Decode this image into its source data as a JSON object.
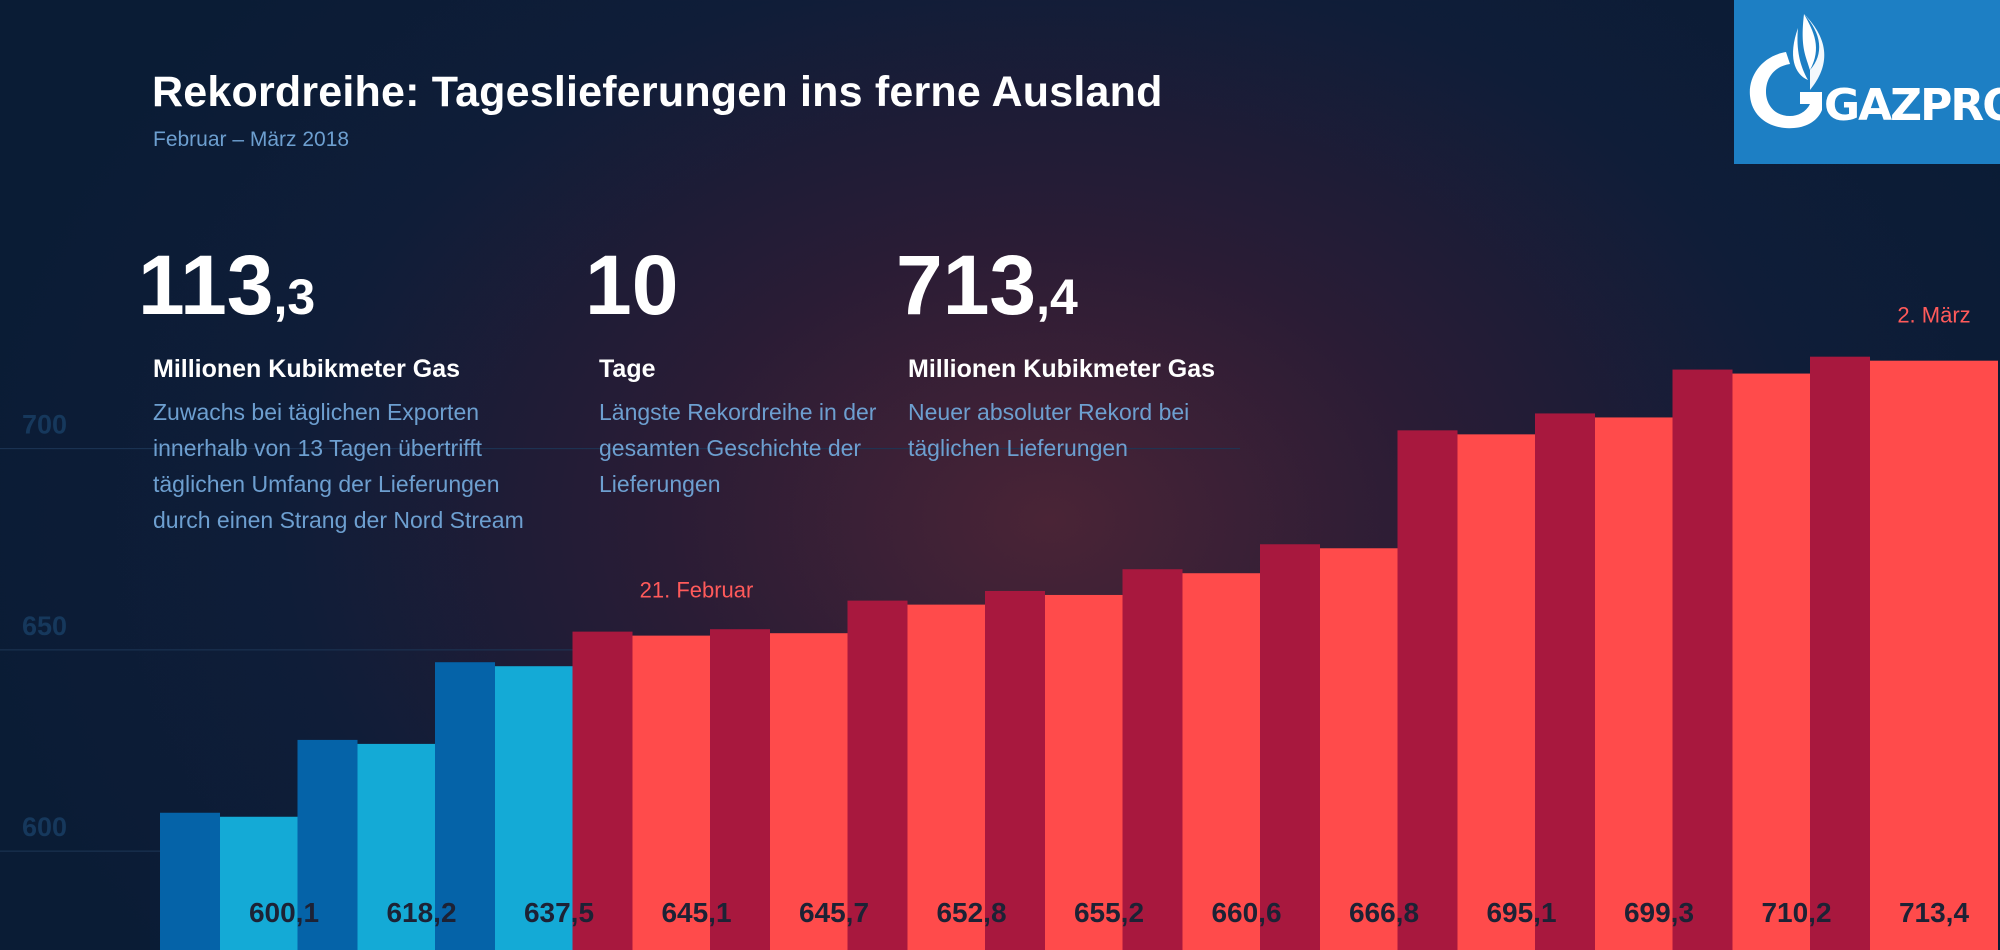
{
  "header": {
    "title": "Rekordreihe: Tageslieferungen ins ferne Ausland",
    "subtitle": "Februar – März 2018"
  },
  "logo": {
    "text": "GAZPROM",
    "color": "#1d7fc4"
  },
  "stats": [
    {
      "value_int": "113",
      "value_dec": ",3",
      "unit": "Millionen Kubikmeter Gas",
      "description": "Zuwachs bei täglichen Exporten innerhalb von 13 Tagen übertrifft täglichen Umfang der Lieferungen durch einen Strang der Nord Stream"
    },
    {
      "value_int": "10",
      "value_dec": "",
      "unit": "Tage",
      "description": "Längste Rekordreihe in der gesamten Geschichte der Lieferungen"
    },
    {
      "value_int": "713",
      "value_dec": ",4",
      "unit": "Millionen Kubikmeter Gas",
      "description": "Neuer absoluter Rekord bei täglichen Lieferungen"
    }
  ],
  "chart_data": {
    "type": "bar",
    "title": "Rekordreihe: Tageslieferungen ins ferne Ausland",
    "subtitle": "Februar – März 2018",
    "y_ticks": [
      600,
      650,
      700
    ],
    "ylim": [
      567,
      803
    ],
    "grid": true,
    "values": [
      600.1,
      618.2,
      637.5,
      645.1,
      645.7,
      652.8,
      655.2,
      660.6,
      666.8,
      695.1,
      699.3,
      710.2,
      713.4
    ],
    "value_labels": [
      "600,1",
      "618,2",
      "637,5",
      "645,1",
      "645,7",
      "652,8",
      "655,2",
      "660,6",
      "666,8",
      "695,1",
      "699,3",
      "710,2",
      "713,4"
    ],
    "annotations": [
      {
        "bar_index": 3,
        "text": "21. Februar"
      },
      {
        "bar_index": 12,
        "text": "2. März"
      }
    ],
    "colors": {
      "blue_front": "#14aad6",
      "blue_side": "#0563a8",
      "red_front": "#ff4b4b",
      "red_side": "#a8183e",
      "tick_label": "#16385c",
      "value_label": "#1d2235",
      "annotation": "#ff5a5a",
      "grid": "#1d3656"
    },
    "highlight_start_index": 3
  }
}
